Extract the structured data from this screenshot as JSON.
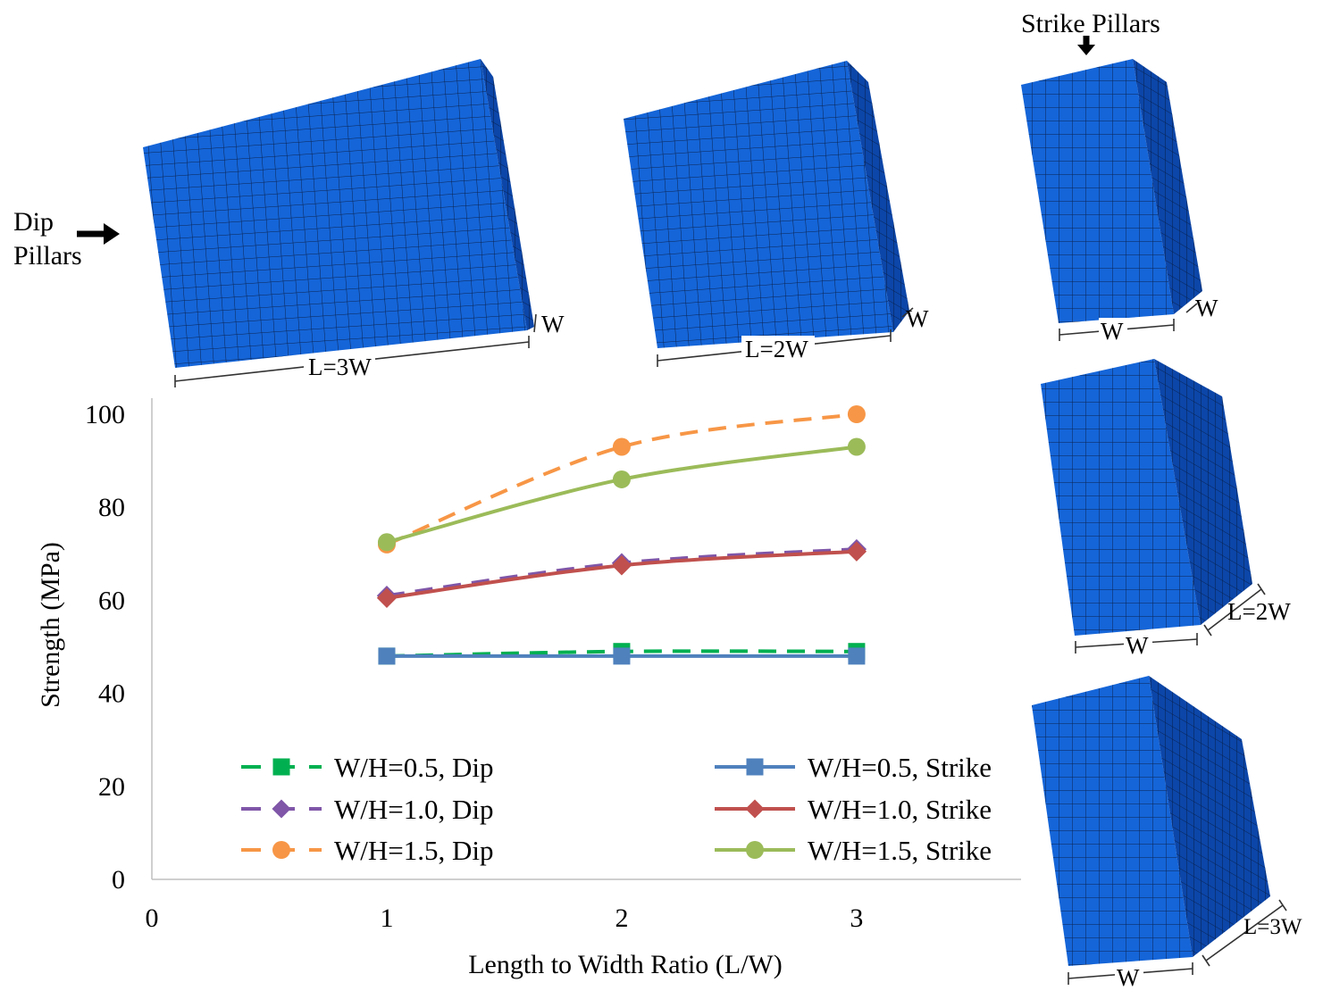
{
  "labels": {
    "dip_pillars_line1": "Dip",
    "dip_pillars_line2": "Pillars",
    "strike_pillars": "Strike Pillars",
    "dim_L3W": "L=3W",
    "dim_L2W": "L=2W",
    "dim_W": "W",
    "dim_L3W_strike": "L=3W",
    "dim_L2W_strike": "L=2W"
  },
  "colors": {
    "block_front": "#1565d8",
    "block_side": "#0c46a8",
    "block_top": "#0f55c0",
    "green": "#00b050",
    "purple": "#7f56a8",
    "orange": "#f79646",
    "blue": "#4f81bd",
    "red": "#c0504d",
    "lime": "#9bbb59"
  },
  "chart_data": {
    "type": "line",
    "xlabel": "Length to Width Ratio (L/W)",
    "ylabel": "Strength (MPa)",
    "xlim": [
      0,
      3.7
    ],
    "ylim": [
      0,
      100
    ],
    "xticks": [
      "0",
      "1",
      "2",
      "3"
    ],
    "yticks": [
      "0",
      "20",
      "40",
      "60",
      "80",
      "100"
    ],
    "x": [
      1,
      2,
      3
    ],
    "series": [
      {
        "name": "W/H=0.5, Dip",
        "values": [
          48,
          49,
          49
        ],
        "color": "#00b050",
        "dash": true,
        "marker": "square"
      },
      {
        "name": "W/H=1.0, Dip",
        "values": [
          61,
          68,
          71
        ],
        "color": "#7f56a8",
        "dash": true,
        "marker": "diamond"
      },
      {
        "name": "W/H=1.5, Dip",
        "values": [
          72,
          93,
          100
        ],
        "color": "#f79646",
        "dash": true,
        "marker": "circle"
      },
      {
        "name": "W/H=0.5, Strike",
        "values": [
          48,
          48,
          48
        ],
        "color": "#4f81bd",
        "dash": false,
        "marker": "square"
      },
      {
        "name": "W/H=1.0, Strike",
        "values": [
          60.5,
          67.5,
          70.5
        ],
        "color": "#c0504d",
        "dash": false,
        "marker": "diamond"
      },
      {
        "name": "W/H=1.5, Strike",
        "values": [
          72.5,
          86,
          93
        ],
        "color": "#9bbb59",
        "dash": false,
        "marker": "circle"
      }
    ],
    "legend_position": "bottom"
  }
}
